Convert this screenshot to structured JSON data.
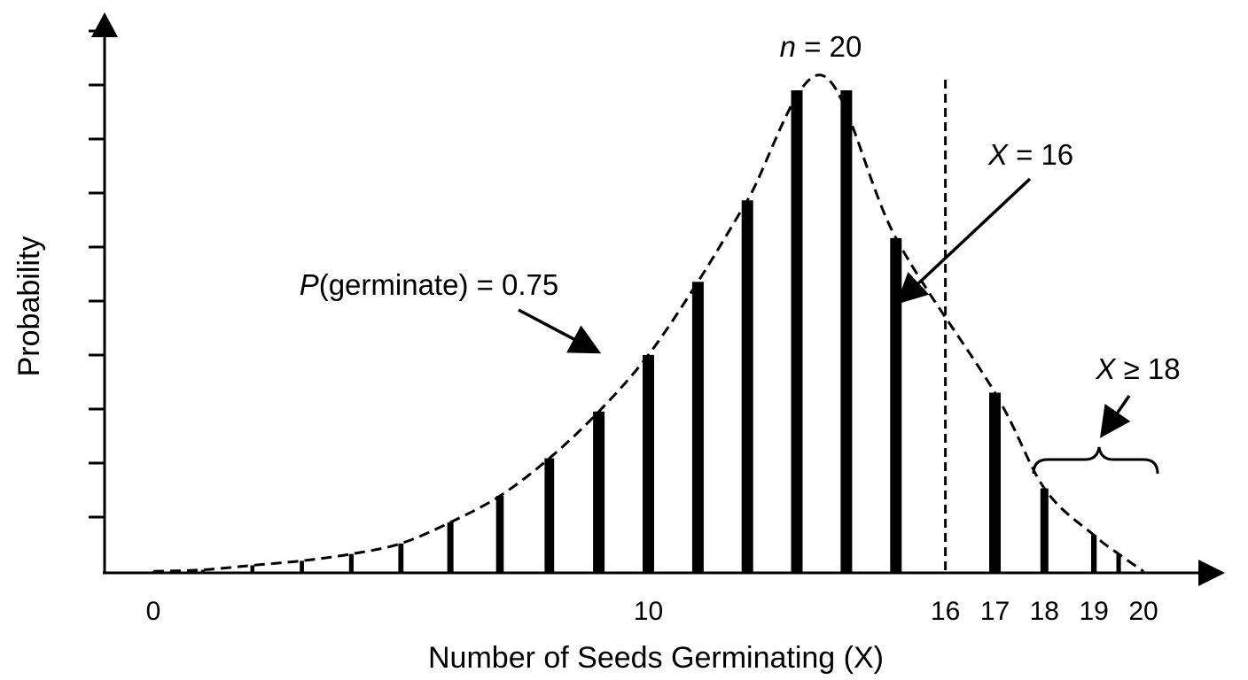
{
  "chart_data": {
    "type": "bar",
    "xlabel": "Number of Seeds Germinating (X)",
    "ylabel": "Probability",
    "x": [
      0,
      1,
      2,
      3,
      4,
      5,
      6,
      7,
      8,
      9,
      10,
      11,
      12,
      13,
      14,
      15,
      17,
      18,
      19,
      19.5,
      20
    ],
    "values": [
      0.002,
      0.004,
      0.01,
      0.016,
      0.025,
      0.039,
      0.067,
      0.102,
      0.152,
      0.214,
      0.289,
      0.386,
      0.494,
      0.64,
      0.64,
      0.444,
      0.239,
      0.112,
      0.05,
      0.025,
      0.002
    ],
    "xlim": [
      0,
      20
    ],
    "ylim": [
      0,
      0.64
    ],
    "x_tick_labels": [
      {
        "x": 0,
        "label": "0"
      },
      {
        "x": 10,
        "label": "10"
      },
      {
        "x": 16,
        "label": "16"
      },
      {
        "x": 17,
        "label": "17"
      },
      {
        "x": 18,
        "label": "18"
      },
      {
        "x": 19,
        "label": "19"
      },
      {
        "x": 20,
        "label": "20"
      }
    ],
    "curve": "dashed",
    "reference_line_x": 16,
    "grid": false,
    "annotations": {
      "n": {
        "var": "n",
        "rest": " = 20"
      },
      "p": {
        "var": "P",
        "rest": "(germinate) = 0.75"
      },
      "x16": {
        "var": "X",
        "rest": " = 16"
      },
      "x18": {
        "var": "X",
        "rest": " ≥ 18"
      }
    }
  }
}
